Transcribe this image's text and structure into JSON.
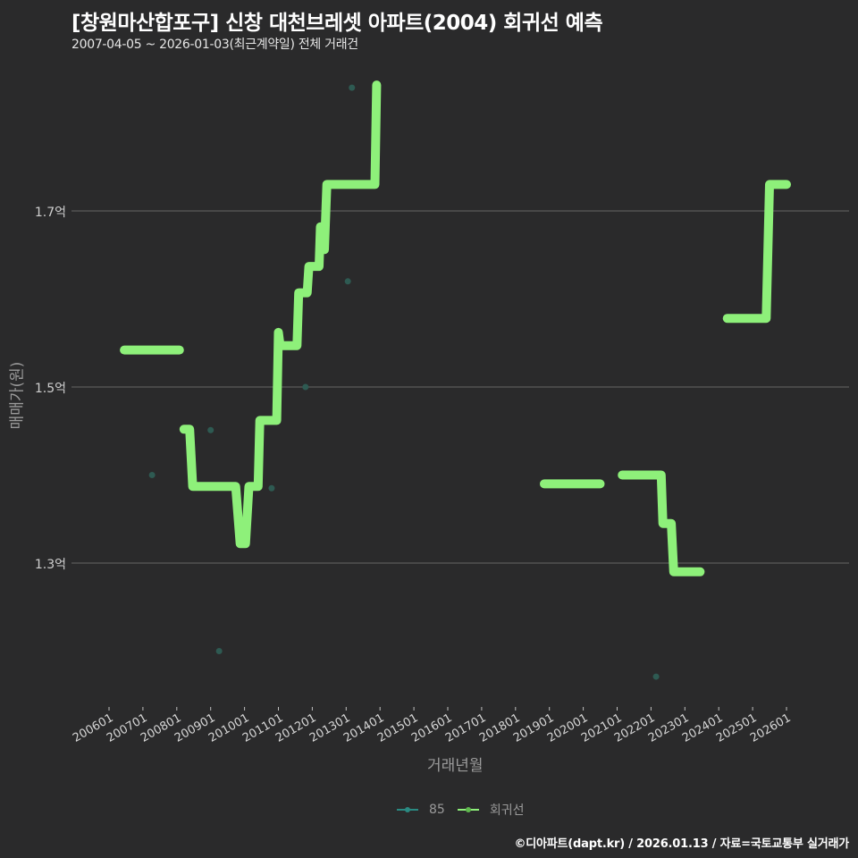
{
  "header": {
    "title": "[창원마산합포구] 신창 대천브레셋 아파트(2004) 회귀선 예측",
    "subtitle": "2007-04-05 ~ 2026-01-03(최근계약일) 전체 거래건"
  },
  "axes": {
    "ylabel": "매매가(원)",
    "xlabel": "거래년월",
    "yticks": [
      {
        "label": "1.7억",
        "value": 1.7
      },
      {
        "label": "1.5억",
        "value": 1.5
      },
      {
        "label": "1.3억",
        "value": 1.3
      }
    ],
    "xticks": [
      "200601",
      "200701",
      "200801",
      "200901",
      "201001",
      "201101",
      "201201",
      "201301",
      "201401",
      "201501",
      "201601",
      "201701",
      "201801",
      "201901",
      "202001",
      "202101",
      "202201",
      "202301",
      "202401",
      "202501",
      "202601"
    ]
  },
  "legend": {
    "items": [
      {
        "label": "85",
        "color": "#2a8a82"
      },
      {
        "label": "회귀선",
        "color": "#8ef07a"
      }
    ]
  },
  "footer": {
    "credit": "©디아파트(dapt.kr) / 2026.01.13 / 자료=국토교통부 실거래가"
  },
  "colors": {
    "background": "#2a2a2b",
    "grid": "#5a5a5a",
    "regression": "#8ef07a",
    "scatter": "#2e5a52"
  },
  "chart_data": {
    "type": "line",
    "title": "[창원마산합포구] 신창 대천브레셋 아파트(2004) 회귀선 예측",
    "subtitle": "2007-04-05 ~ 2026-01-03(최근계약일) 전체 거래건",
    "xlabel": "거래년월",
    "ylabel": "매매가(원)",
    "ylim": [
      1.11,
      1.86
    ],
    "xlim": [
      2005.6,
      2026.2
    ],
    "grid": true,
    "legend_position": "bottom",
    "series": [
      {
        "name": "85",
        "type": "scatter",
        "points": [
          {
            "x": 2007.27,
            "y": 1.4
          },
          {
            "x": 2009.0,
            "y": 1.451
          },
          {
            "x": 2009.25,
            "y": 1.2
          },
          {
            "x": 2010.8,
            "y": 1.385
          },
          {
            "x": 2011.8,
            "y": 1.5
          },
          {
            "x": 2013.05,
            "y": 1.62
          },
          {
            "x": 2013.17,
            "y": 1.84
          },
          {
            "x": 2022.15,
            "y": 1.171
          }
        ]
      },
      {
        "name": "회귀선",
        "type": "line",
        "segments": [
          [
            [
              2006.45,
              1.542
            ],
            [
              2008.08,
              1.542
            ]
          ],
          [
            [
              2008.21,
              1.452
            ],
            [
              2008.38,
              1.452
            ],
            [
              2008.47,
              1.387
            ],
            [
              2009.74,
              1.387
            ],
            [
              2009.87,
              1.322
            ],
            [
              2010.03,
              1.322
            ],
            [
              2010.13,
              1.387
            ],
            [
              2010.4,
              1.387
            ],
            [
              2010.45,
              1.462
            ],
            [
              2010.95,
              1.462
            ],
            [
              2011.0,
              1.562
            ],
            [
              2011.05,
              1.547
            ],
            [
              2011.55,
              1.547
            ],
            [
              2011.6,
              1.607
            ],
            [
              2011.85,
              1.607
            ],
            [
              2011.9,
              1.637
            ],
            [
              2012.2,
              1.637
            ],
            [
              2012.24,
              1.682
            ],
            [
              2012.33,
              1.682
            ],
            [
              2012.36,
              1.656
            ],
            [
              2012.43,
              1.73
            ],
            [
              2013.85,
              1.73
            ],
            [
              2013.9,
              1.843
            ]
          ],
          [
            [
              2018.85,
              1.39
            ],
            [
              2020.5,
              1.39
            ]
          ],
          [
            [
              2021.15,
              1.4
            ],
            [
              2022.3,
              1.4
            ],
            [
              2022.35,
              1.345
            ],
            [
              2022.6,
              1.345
            ],
            [
              2022.67,
              1.29
            ],
            [
              2023.45,
              1.29
            ]
          ],
          [
            [
              2024.25,
              1.578
            ],
            [
              2025.4,
              1.578
            ],
            [
              2025.5,
              1.73
            ],
            [
              2026.0,
              1.73
            ]
          ]
        ]
      }
    ]
  }
}
